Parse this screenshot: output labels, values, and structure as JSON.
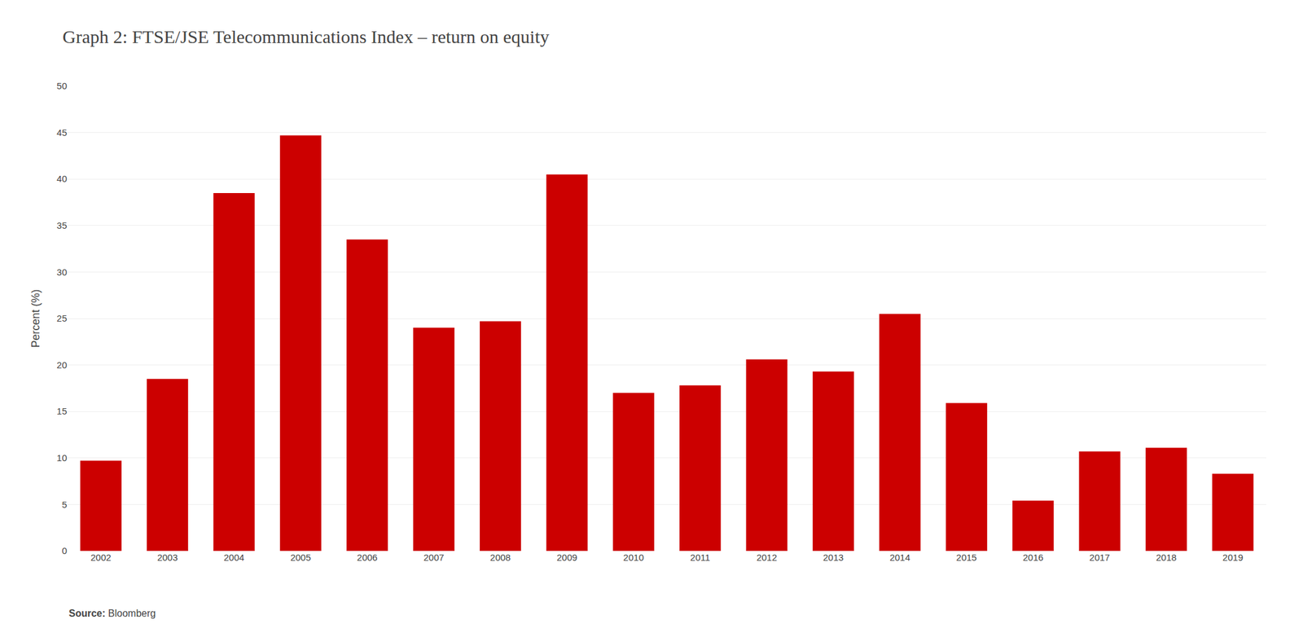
{
  "chart_data": {
    "type": "bar",
    "title": "Graph 2: FTSE/JSE Telecommunications Index – return on equity",
    "ylabel": "Percent (%)",
    "annotations": [
      "Source:",
      "Bloomberg"
    ],
    "categories": [
      "2002",
      "2003",
      "2004",
      "2005",
      "2006",
      "2007",
      "2008",
      "2009",
      "2010",
      "2011",
      "2012",
      "2013",
      "2014",
      "2015",
      "2016",
      "2017",
      "2018",
      "2019"
    ],
    "values": [
      9.7,
      18.5,
      38.5,
      44.7,
      33.5,
      24.0,
      24.7,
      40.5,
      17.0,
      17.8,
      20.6,
      19.3,
      25.5,
      15.9,
      5.4,
      10.7,
      11.1,
      8.3
    ],
    "color": "#cc0000",
    "ylim": [
      0,
      50
    ],
    "yticks": [
      0,
      5,
      10,
      15,
      20,
      25,
      30,
      35,
      40,
      45,
      50
    ],
    "grid": true
  }
}
